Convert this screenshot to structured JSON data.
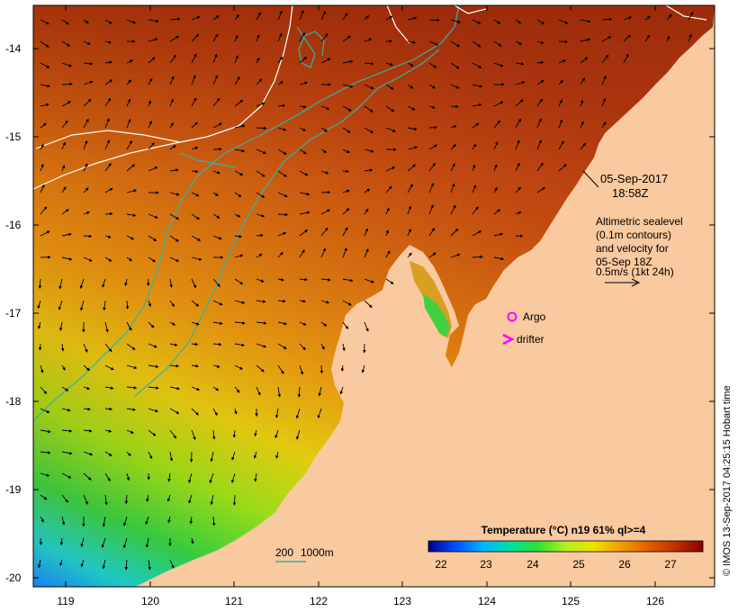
{
  "map": {
    "lon_ticks": [
      "119",
      "120",
      "121",
      "122",
      "123",
      "124",
      "125",
      "126"
    ],
    "lat_ticks": [
      "-14",
      "-15",
      "-16",
      "-17",
      "-18",
      "-19",
      "-20"
    ],
    "date_line1": "05-Sep-2017",
    "date_line2": "18:58Z",
    "altimetry_lines": [
      "Altimetric sealevel",
      "(0.1m contours)",
      "and velocity for",
      "05-Sep 18Z",
      "0.5m/s (1kt 24h)"
    ],
    "argo_label": "Argo",
    "drifter_label": "drifter",
    "scale_label": "200",
    "scale_label2": "1000m",
    "colorbar_title": "Temperature (°C) n19 61% ql>=4",
    "colorbar_ticks": [
      "22",
      "23",
      "24",
      "25",
      "26",
      "27"
    ],
    "credit": "© IMOS 13-Sep-2017 04:25:15 Hobart time",
    "colors": {
      "land": "#f9c99f",
      "argo": "#ff00ff",
      "drifter": "#ff00ff",
      "contour_cyan": "#2fb5aa",
      "contour_white": "#ffffff"
    },
    "colorbar_stops": [
      "#00008b",
      "#0050ff",
      "#00b4ff",
      "#00e0a0",
      "#30e030",
      "#b0f020",
      "#f0e000",
      "#f0a000",
      "#e06000",
      "#c03000",
      "#8b0000"
    ]
  }
}
